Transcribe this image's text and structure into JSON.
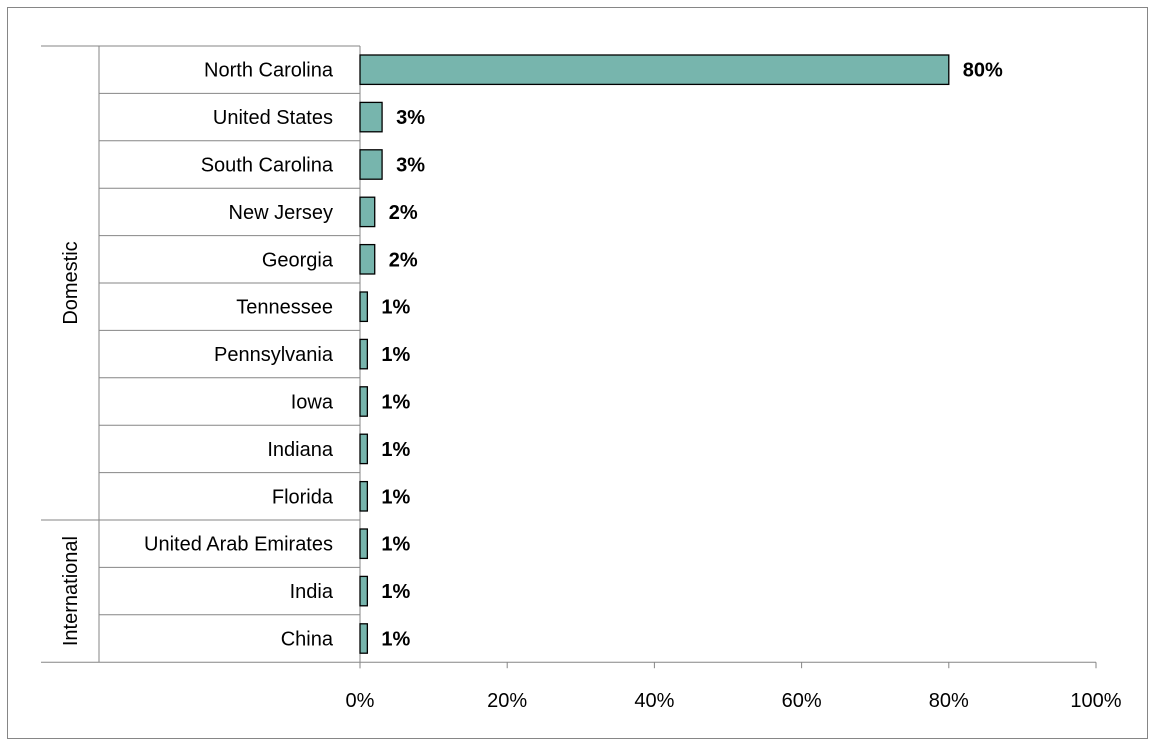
{
  "chart_data": {
    "type": "bar",
    "orientation": "horizontal",
    "title": "",
    "xlabel": "",
    "ylabel": "",
    "xlim": [
      0,
      100
    ],
    "x_ticks": [
      "0%",
      "20%",
      "40%",
      "60%",
      "80%",
      "100%"
    ],
    "groups": [
      {
        "label": "Domestic",
        "categories": [
          "North Carolina",
          "United States",
          "South Carolina",
          "New Jersey",
          "Georgia",
          "Tennessee",
          "Pennsylvania",
          "Iowa",
          "Indiana",
          "Florida"
        ],
        "values": [
          80,
          3,
          3,
          2,
          2,
          1,
          1,
          1,
          1,
          1
        ],
        "labels": [
          "80%",
          "3%",
          "3%",
          "2%",
          "2%",
          "1%",
          "1%",
          "1%",
          "1%",
          "1%"
        ]
      },
      {
        "label": "International",
        "categories": [
          "United Arab Emirates",
          "India",
          "China"
        ],
        "values": [
          1,
          1,
          1
        ],
        "labels": [
          "1%",
          "1%",
          "1%"
        ]
      }
    ],
    "bar_color": "#77b5ad",
    "bar_stroke": "#000000",
    "grid": false,
    "legend": "none"
  }
}
